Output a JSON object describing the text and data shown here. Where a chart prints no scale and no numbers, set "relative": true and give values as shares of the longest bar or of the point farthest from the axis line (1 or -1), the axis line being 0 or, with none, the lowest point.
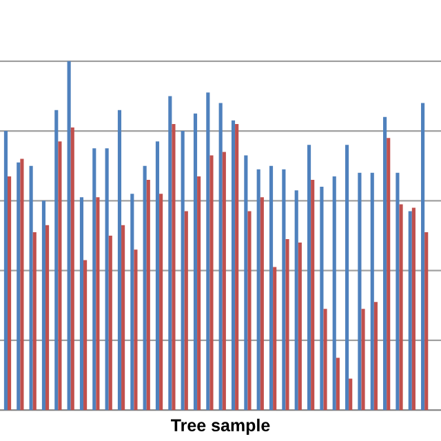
{
  "chart_data": {
    "type": "bar",
    "relative": true,
    "xlabel": "Tree sample",
    "grid": "y",
    "legend": false,
    "categories": [
      null,
      null,
      null,
      null,
      null,
      null,
      null,
      null,
      null,
      null,
      null,
      null,
      null,
      null,
      null,
      null,
      null,
      null,
      null,
      null,
      null,
      null,
      null,
      null,
      null,
      null,
      null,
      null,
      null,
      null,
      null,
      null,
      null,
      null
    ],
    "series": [
      {
        "color": "#4f81bd",
        "values": [
          0.8,
          0.71,
          0.7,
          0.6,
          0.86,
          1.0,
          0.61,
          0.75,
          0.75,
          0.86,
          0.62,
          0.7,
          0.77,
          0.9,
          0.8,
          0.85,
          0.91,
          0.88,
          0.83,
          0.73,
          0.69,
          0.7,
          0.69,
          0.63,
          0.76,
          0.64,
          0.67,
          0.76,
          0.68,
          0.68,
          0.84,
          0.68,
          0.57,
          0.88
        ]
      },
      {
        "color": "#c0504d",
        "values": [
          0.67,
          0.72,
          0.51,
          0.53,
          0.77,
          0.81,
          0.43,
          0.61,
          0.5,
          0.53,
          0.46,
          0.66,
          0.62,
          0.82,
          0.57,
          0.67,
          0.73,
          0.74,
          0.82,
          0.57,
          0.61,
          0.41,
          0.49,
          0.48,
          0.66,
          0.29,
          0.15,
          0.09,
          0.29,
          0.31,
          0.78,
          0.59,
          0.58,
          0.51
        ]
      }
    ]
  }
}
